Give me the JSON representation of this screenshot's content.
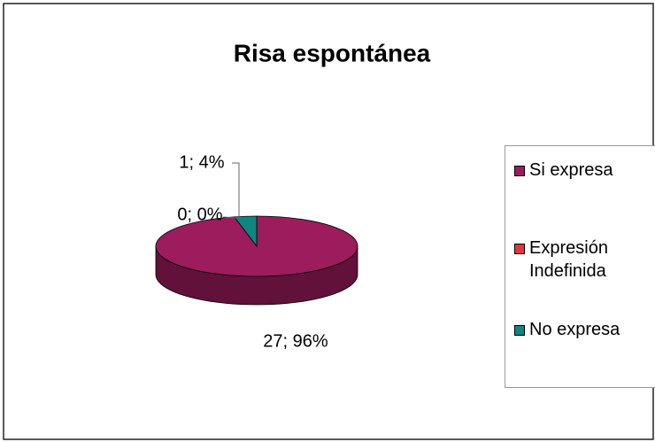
{
  "chart_data": {
    "type": "pie",
    "title": "Risa espontánea",
    "categories": [
      "Si expresa",
      "Expresión Indefinida",
      "No expresa"
    ],
    "values": [
      27,
      0,
      1
    ],
    "value_labels": [
      "27; 96%",
      "0; 0%",
      "1; 4%"
    ],
    "colors": [
      "#9c1c5e",
      "#e0383a",
      "#0f8582"
    ],
    "legend": "right"
  }
}
